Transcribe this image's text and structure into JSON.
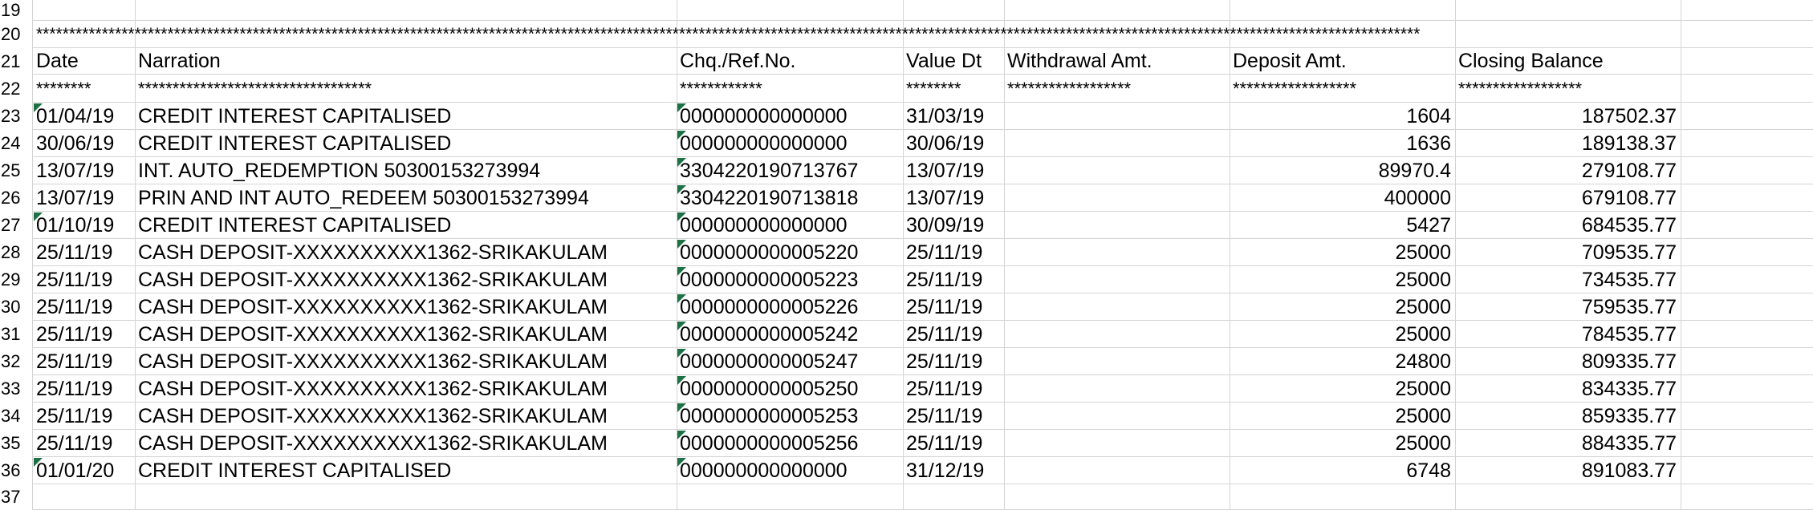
{
  "stars_line": "*******************************************************************************************************************************************************************************************************************",
  "headers": {
    "date": "Date",
    "narration": "Narration",
    "chq_ref": "Chq./Ref.No.",
    "value_dt": "Value Dt",
    "withdrawal": "Withdrawal Amt.",
    "deposit": "Deposit Amt.",
    "closing": "Closing Balance"
  },
  "separators": {
    "date": "********",
    "narration": "**********************************",
    "chq_ref": "************",
    "value_dt": "********",
    "withdrawal": "******************",
    "deposit": "******************",
    "closing": "******************"
  },
  "row_numbers": [
    "19",
    "20",
    "21",
    "22",
    "23",
    "24",
    "25",
    "26",
    "27",
    "28",
    "29",
    "30",
    "31",
    "32",
    "33",
    "34",
    "35",
    "36",
    "37"
  ],
  "transactions": [
    {
      "date": "01/04/19",
      "narration": "CREDIT INTEREST CAPITALISED",
      "ref": "000000000000000",
      "value_dt": "31/03/19",
      "withdrawal": "",
      "deposit": "1604",
      "closing": "187502.37"
    },
    {
      "date": "30/06/19",
      "narration": "CREDIT INTEREST CAPITALISED",
      "ref": "000000000000000",
      "value_dt": "30/06/19",
      "withdrawal": "",
      "deposit": "1636",
      "closing": "189138.37"
    },
    {
      "date": "13/07/19",
      "narration": "INT. AUTO_REDEMPTION  50300153273994",
      "ref": "3304220190713767",
      "value_dt": "13/07/19",
      "withdrawal": "",
      "deposit": "89970.4",
      "closing": "279108.77"
    },
    {
      "date": "13/07/19",
      "narration": "PRIN AND INT AUTO_REDEEM 50300153273994",
      "ref": "3304220190713818",
      "value_dt": "13/07/19",
      "withdrawal": "",
      "deposit": "400000",
      "closing": "679108.77"
    },
    {
      "date": "01/10/19",
      "narration": "CREDIT INTEREST CAPITALISED",
      "ref": "000000000000000",
      "value_dt": "30/09/19",
      "withdrawal": "",
      "deposit": "5427",
      "closing": "684535.77"
    },
    {
      "date": "25/11/19",
      "narration": "CASH DEPOSIT-XXXXXXXXXX1362-SRIKAKULAM",
      "ref": "0000000000005220",
      "value_dt": "25/11/19",
      "withdrawal": "",
      "deposit": "25000",
      "closing": "709535.77"
    },
    {
      "date": "25/11/19",
      "narration": "CASH DEPOSIT-XXXXXXXXXX1362-SRIKAKULAM",
      "ref": "0000000000005223",
      "value_dt": "25/11/19",
      "withdrawal": "",
      "deposit": "25000",
      "closing": "734535.77"
    },
    {
      "date": "25/11/19",
      "narration": "CASH DEPOSIT-XXXXXXXXXX1362-SRIKAKULAM",
      "ref": "0000000000005226",
      "value_dt": "25/11/19",
      "withdrawal": "",
      "deposit": "25000",
      "closing": "759535.77"
    },
    {
      "date": "25/11/19",
      "narration": "CASH DEPOSIT-XXXXXXXXXX1362-SRIKAKULAM",
      "ref": "0000000000005242",
      "value_dt": "25/11/19",
      "withdrawal": "",
      "deposit": "25000",
      "closing": "784535.77"
    },
    {
      "date": "25/11/19",
      "narration": "CASH DEPOSIT-XXXXXXXXXX1362-SRIKAKULAM",
      "ref": "0000000000005247",
      "value_dt": "25/11/19",
      "withdrawal": "",
      "deposit": "24800",
      "closing": "809335.77"
    },
    {
      "date": "25/11/19",
      "narration": "CASH DEPOSIT-XXXXXXXXXX1362-SRIKAKULAM",
      "ref": "0000000000005250",
      "value_dt": "25/11/19",
      "withdrawal": "",
      "deposit": "25000",
      "closing": "834335.77"
    },
    {
      "date": "25/11/19",
      "narration": "CASH DEPOSIT-XXXXXXXXXX1362-SRIKAKULAM",
      "ref": "0000000000005253",
      "value_dt": "25/11/19",
      "withdrawal": "",
      "deposit": "25000",
      "closing": "859335.77"
    },
    {
      "date": "25/11/19",
      "narration": "CASH DEPOSIT-XXXXXXXXXX1362-SRIKAKULAM",
      "ref": "0000000000005256",
      "value_dt": "25/11/19",
      "withdrawal": "",
      "deposit": "25000",
      "closing": "884335.77"
    },
    {
      "date": "01/01/20",
      "narration": "CREDIT INTEREST CAPITALISED",
      "ref": "000000000000000",
      "value_dt": "31/12/19",
      "withdrawal": "",
      "deposit": "6748",
      "closing": "891083.77"
    }
  ],
  "colors": {
    "gridline": "#d4d4d4",
    "text_indicator": "#1e7145"
  },
  "icons": {
    "text_indicator": "green-triangle-icon"
  }
}
